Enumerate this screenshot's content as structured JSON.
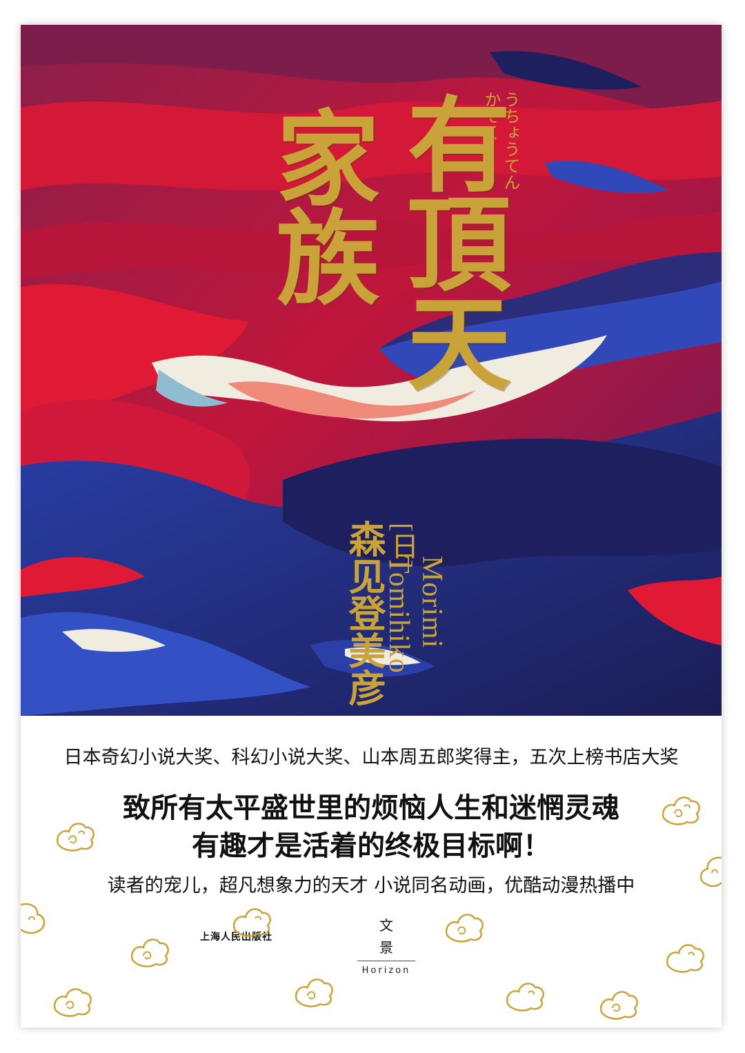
{
  "cover": {
    "title_line1": "有頂天",
    "title_line2": "家族",
    "ruby_line1": "うちょうてん",
    "ruby_line2": "かぞく",
    "author_cn": "森见登美彦",
    "author_prefix": "[日]",
    "author_en": "Morimi Tomihiko",
    "award_line": "日本奇幻小说大奖、科幻小说大奖、山本周五郎奖得主，五次上榜书店大奖",
    "tagline_1": "致所有太平盛世里的烦恼人生和迷惘灵魂",
    "tagline_2": "有趣才是活着的终极目标啊！",
    "subline": "读者的宠儿，超凡想象力的天才   小说同名动画，优酷动漫热播中",
    "publisher": "上海人民出版社",
    "imprint_cn_1": "文",
    "imprint_cn_2": "景",
    "imprint_en": "Horizon"
  },
  "colors": {
    "gold": "#c9a23a",
    "crimson": "#d41838",
    "navy": "#1e1f5e",
    "royal_blue": "#2a3fa8"
  },
  "icons": [
    "gold-cloud-pattern-icon"
  ]
}
